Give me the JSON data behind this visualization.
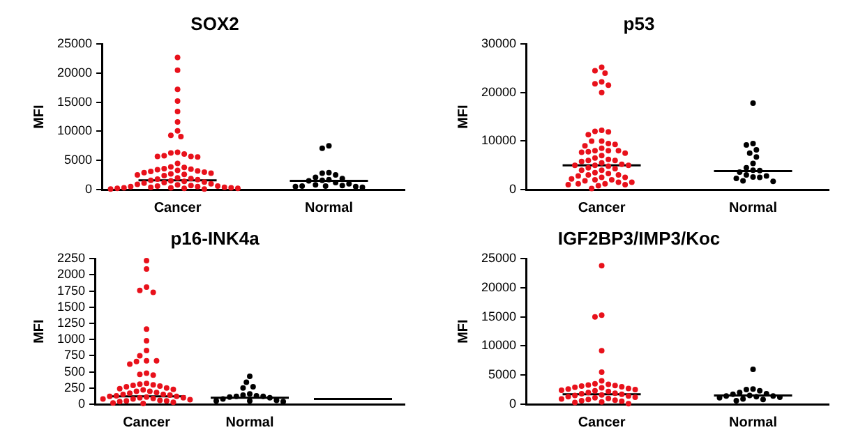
{
  "chart_data": [
    {
      "type": "scatter",
      "title": "SOX2",
      "ylabel": "MFI",
      "categories": [
        "Cancer",
        "Normal"
      ],
      "ylim": [
        0,
        25000
      ],
      "yticks": [
        0,
        5000,
        10000,
        15000,
        20000,
        25000
      ],
      "grid": false,
      "legend": false,
      "marker": "circle",
      "series": [
        {
          "color": "#e8111b",
          "x": [
            "Cancer",
            "Cancer",
            "Cancer",
            "Cancer",
            "Cancer",
            "Cancer",
            "Cancer",
            "Cancer",
            "Cancer",
            "Cancer",
            "Cancer",
            "Cancer",
            "Cancer",
            "Cancer",
            "Cancer",
            "Cancer",
            "Cancer",
            "Cancer",
            "Cancer",
            "Cancer",
            "Cancer",
            "Cancer",
            "Cancer",
            "Cancer",
            "Cancer",
            "Cancer",
            "Cancer",
            "Cancer",
            "Cancer",
            "Cancer",
            "Cancer",
            "Cancer",
            "Cancer",
            "Cancer",
            "Cancer",
            "Cancer",
            "Cancer",
            "Cancer",
            "Cancer",
            "Cancer",
            "Cancer",
            "Cancer",
            "Cancer",
            "Cancer",
            "Cancer",
            "Cancer",
            "Cancer",
            "Cancer",
            "Cancer",
            "Cancer",
            "Cancer",
            "Cancer",
            "Cancer",
            "Cancer",
            "Cancer",
            "Cancer",
            "Cancer",
            "Cancer",
            "Cancer",
            "Cancer"
          ],
          "values": [
            22700,
            20500,
            17200,
            15200,
            13400,
            11600,
            10100,
            9300,
            9100,
            6400,
            6300,
            6100,
            5800,
            5700,
            5700,
            5600,
            4500,
            3900,
            3800,
            3600,
            3500,
            3400,
            3300,
            3200,
            3100,
            3000,
            2900,
            2800,
            2700,
            2600,
            2500,
            2400,
            2000,
            1900,
            1800,
            1700,
            1600,
            1500,
            1400,
            1300,
            1200,
            1100,
            1000,
            900,
            800,
            700,
            600,
            600,
            500,
            500,
            400,
            400,
            300,
            300,
            300,
            200,
            200,
            200,
            100,
            100
          ]
        },
        {
          "color": "#000000",
          "x": [
            "Normal",
            "Normal",
            "Normal",
            "Normal",
            "Normal",
            "Normal",
            "Normal",
            "Normal",
            "Normal",
            "Normal",
            "Normal",
            "Normal",
            "Normal",
            "Normal",
            "Normal",
            "Normal",
            "Normal",
            "Normal",
            "Normal"
          ],
          "values": [
            7500,
            7100,
            2900,
            2800,
            2500,
            2100,
            1900,
            1700,
            1600,
            1500,
            1200,
            1000,
            800,
            700,
            600,
            600,
            500,
            500,
            400
          ]
        },
        {
          "type": "box",
          "color": "#000000",
          "boxes": [
            {
              "low": 1600,
              "q1": 1600,
              "median": 1600,
              "q3": 1600,
              "high": 1600
            },
            {
              "low": 1500,
              "q1": 1500,
              "median": 1500,
              "q3": 1500,
              "high": 1500
            }
          ]
        }
      ]
    },
    {
      "type": "scatter",
      "title": "p53",
      "ylabel": "MFI",
      "categories": [
        "Cancer",
        "Normal"
      ],
      "ylim": [
        0,
        30000
      ],
      "yticks": [
        0,
        10000,
        20000,
        30000
      ],
      "grid": false,
      "legend": false,
      "marker": "circle",
      "series": [
        {
          "color": "#e8111b",
          "x": [
            "Cancer",
            "Cancer",
            "Cancer",
            "Cancer",
            "Cancer",
            "Cancer",
            "Cancer",
            "Cancer",
            "Cancer",
            "Cancer",
            "Cancer",
            "Cancer",
            "Cancer",
            "Cancer",
            "Cancer",
            "Cancer",
            "Cancer",
            "Cancer",
            "Cancer",
            "Cancer",
            "Cancer",
            "Cancer",
            "Cancer",
            "Cancer",
            "Cancer",
            "Cancer",
            "Cancer",
            "Cancer",
            "Cancer",
            "Cancer",
            "Cancer",
            "Cancer",
            "Cancer",
            "Cancer",
            "Cancer",
            "Cancer",
            "Cancer",
            "Cancer",
            "Cancer",
            "Cancer",
            "Cancer",
            "Cancer",
            "Cancer",
            "Cancer",
            "Cancer",
            "Cancer",
            "Cancer",
            "Cancer",
            "Cancer",
            "Cancer",
            "Cancer",
            "Cancer",
            "Cancer",
            "Cancer",
            "Cancer",
            "Cancer",
            "Cancer",
            "Cancer"
          ],
          "values": [
            25200,
            24500,
            24000,
            22200,
            21800,
            21500,
            20000,
            12200,
            12000,
            11900,
            11300,
            10000,
            10000,
            9500,
            9300,
            9000,
            8500,
            8000,
            8000,
            8000,
            7800,
            7700,
            7500,
            7000,
            6500,
            6200,
            6000,
            6000,
            5800,
            5500,
            5200,
            5000,
            5000,
            5000,
            4800,
            4500,
            4300,
            4000,
            4000,
            3500,
            3300,
            3000,
            3000,
            2800,
            2500,
            2500,
            2200,
            2000,
            2000,
            1800,
            1500,
            1500,
            1200,
            1200,
            1000,
            1000,
            800,
            200
          ]
        },
        {
          "color": "#000000",
          "x": [
            "Normal",
            "Normal",
            "Normal",
            "Normal",
            "Normal",
            "Normal",
            "Normal",
            "Normal",
            "Normal",
            "Normal",
            "Normal",
            "Normal",
            "Normal",
            "Normal",
            "Normal",
            "Normal",
            "Normal",
            "Normal"
          ],
          "values": [
            17800,
            9500,
            9200,
            8200,
            7500,
            6700,
            5400,
            4500,
            4000,
            3900,
            3600,
            3000,
            2800,
            2600,
            2500,
            2300,
            1800,
            1700
          ]
        },
        {
          "type": "box",
          "color": "#000000",
          "boxes": [
            {
              "low": 5000,
              "q1": 5000,
              "median": 5000,
              "q3": 5000,
              "high": 5000
            },
            {
              "low": 3800,
              "q1": 3800,
              "median": 3800,
              "q3": 3800,
              "high": 3800
            }
          ]
        }
      ]
    },
    {
      "type": "scatter",
      "title": "p16-INK4a",
      "ylabel": "MFI",
      "categories": [
        "Cancer",
        "Normal",
        null
      ],
      "ylim": [
        0,
        2250
      ],
      "yticks": [
        0,
        250,
        500,
        750,
        1000,
        1250,
        1500,
        1750,
        2000,
        2250
      ],
      "grid": false,
      "legend": false,
      "marker": "circle",
      "series": [
        {
          "color": "#e8111b",
          "x": [
            "Cancer",
            "Cancer",
            "Cancer",
            "Cancer",
            "Cancer",
            "Cancer",
            "Cancer",
            "Cancer",
            "Cancer",
            "Cancer",
            "Cancer",
            "Cancer",
            "Cancer",
            "Cancer",
            "Cancer",
            "Cancer",
            "Cancer",
            "Cancer",
            "Cancer",
            "Cancer",
            "Cancer",
            "Cancer",
            "Cancer",
            "Cancer",
            "Cancer",
            "Cancer",
            "Cancer",
            "Cancer",
            "Cancer",
            "Cancer",
            "Cancer",
            "Cancer",
            "Cancer",
            "Cancer",
            "Cancer",
            "Cancer",
            "Cancer",
            "Cancer",
            "Cancer",
            "Cancer",
            "Cancer",
            "Cancer",
            "Cancer",
            "Cancer",
            "Cancer",
            "Cancer",
            "Cancer",
            "Cancer",
            "Cancer",
            "Cancer"
          ],
          "values": [
            2220,
            2090,
            1810,
            1760,
            1730,
            1160,
            980,
            830,
            750,
            670,
            670,
            660,
            620,
            480,
            460,
            450,
            320,
            310,
            300,
            290,
            280,
            270,
            250,
            240,
            230,
            220,
            200,
            200,
            180,
            170,
            150,
            150,
            140,
            130,
            120,
            120,
            110,
            100,
            100,
            90,
            80,
            80,
            70,
            60,
            50,
            50,
            40,
            30,
            20,
            10
          ]
        },
        {
          "color": "#000000",
          "x": [
            "Normal",
            "Normal",
            "Normal",
            "Normal",
            "Normal",
            "Normal",
            "Normal",
            "Normal",
            "Normal",
            "Normal",
            "Normal",
            "Normal",
            "Normal",
            "Normal",
            "Normal",
            "Normal"
          ],
          "values": [
            430,
            340,
            270,
            250,
            160,
            140,
            130,
            120,
            120,
            110,
            100,
            80,
            60,
            50,
            50,
            40
          ]
        },
        {
          "type": "box",
          "color": "#000000",
          "boxes": [
            {
              "low": 120,
              "q1": 120,
              "median": 120,
              "q3": 120,
              "high": 120
            },
            {
              "low": 100,
              "q1": 100,
              "median": 100,
              "q3": 100,
              "high": 100
            },
            {
              "low": 80,
              "q1": 80,
              "median": 80,
              "q3": 80,
              "high": 80
            }
          ]
        }
      ]
    },
    {
      "type": "scatter",
      "title": "IGF2BP3/IMP3/Koc",
      "ylabel": "MFI",
      "categories": [
        "Cancer",
        "Normal"
      ],
      "ylim": [
        0,
        25000
      ],
      "yticks": [
        0,
        5000,
        10000,
        15000,
        20000,
        25000
      ],
      "grid": false,
      "legend": false,
      "marker": "circle",
      "series": [
        {
          "color": "#e8111b",
          "x": [
            "Cancer",
            "Cancer",
            "Cancer",
            "Cancer",
            "Cancer",
            "Cancer",
            "Cancer",
            "Cancer",
            "Cancer",
            "Cancer",
            "Cancer",
            "Cancer",
            "Cancer",
            "Cancer",
            "Cancer",
            "Cancer",
            "Cancer",
            "Cancer",
            "Cancer",
            "Cancer",
            "Cancer",
            "Cancer",
            "Cancer",
            "Cancer",
            "Cancer",
            "Cancer",
            "Cancer",
            "Cancer",
            "Cancer",
            "Cancer",
            "Cancer",
            "Cancer",
            "Cancer",
            "Cancer",
            "Cancer",
            "Cancer",
            "Cancer",
            "Cancer",
            "Cancer"
          ],
          "values": [
            23800,
            15300,
            15000,
            9200,
            5500,
            4000,
            3500,
            3400,
            3300,
            3200,
            3100,
            3000,
            2900,
            2800,
            2700,
            2600,
            2500,
            2400,
            2300,
            2200,
            2000,
            1900,
            1800,
            1700,
            1600,
            1500,
            1400,
            1300,
            1200,
            1100,
            1000,
            900,
            800,
            700,
            600,
            500,
            400,
            300,
            100
          ]
        },
        {
          "color": "#000000",
          "x": [
            "Normal",
            "Normal",
            "Normal",
            "Normal",
            "Normal",
            "Normal",
            "Normal",
            "Normal",
            "Normal",
            "Normal",
            "Normal",
            "Normal",
            "Normal",
            "Normal",
            "Normal",
            "Normal"
          ],
          "values": [
            6000,
            2600,
            2500,
            2300,
            2000,
            1800,
            1700,
            1500,
            1400,
            1400,
            1300,
            1200,
            1100,
            900,
            800,
            600
          ]
        },
        {
          "type": "box",
          "color": "#000000",
          "boxes": [
            {
              "low": 1700,
              "q1": 1700,
              "median": 1700,
              "q3": 1700,
              "high": 1700
            },
            {
              "low": 1500,
              "q1": 1500,
              "median": 1500,
              "q3": 1500,
              "high": 1500
            }
          ]
        }
      ]
    }
  ]
}
